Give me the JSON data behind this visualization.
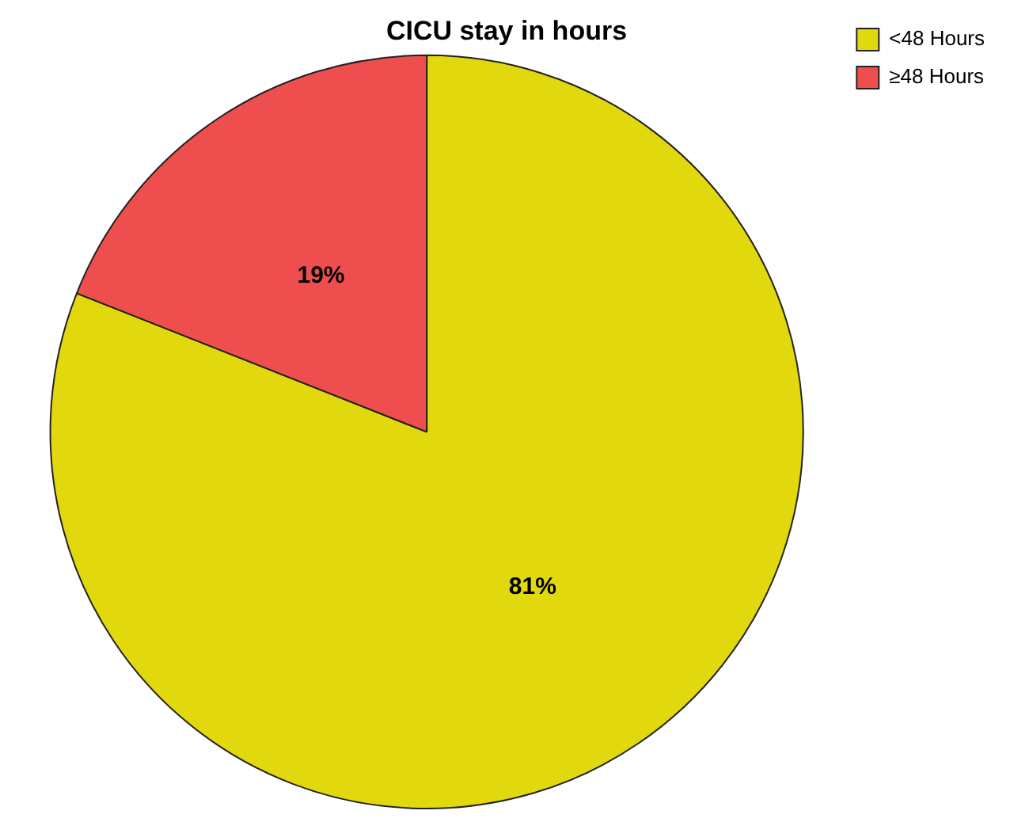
{
  "chart_data": {
    "type": "pie",
    "title": "CICU stay in hours",
    "categories": [
      "<48 Hours",
      "≥48 Hours"
    ],
    "values": [
      81,
      19
    ],
    "colors": [
      "#e1d80e",
      "#ee4e4e"
    ],
    "value_labels": [
      "81%",
      "19%"
    ],
    "legend": "top right"
  }
}
